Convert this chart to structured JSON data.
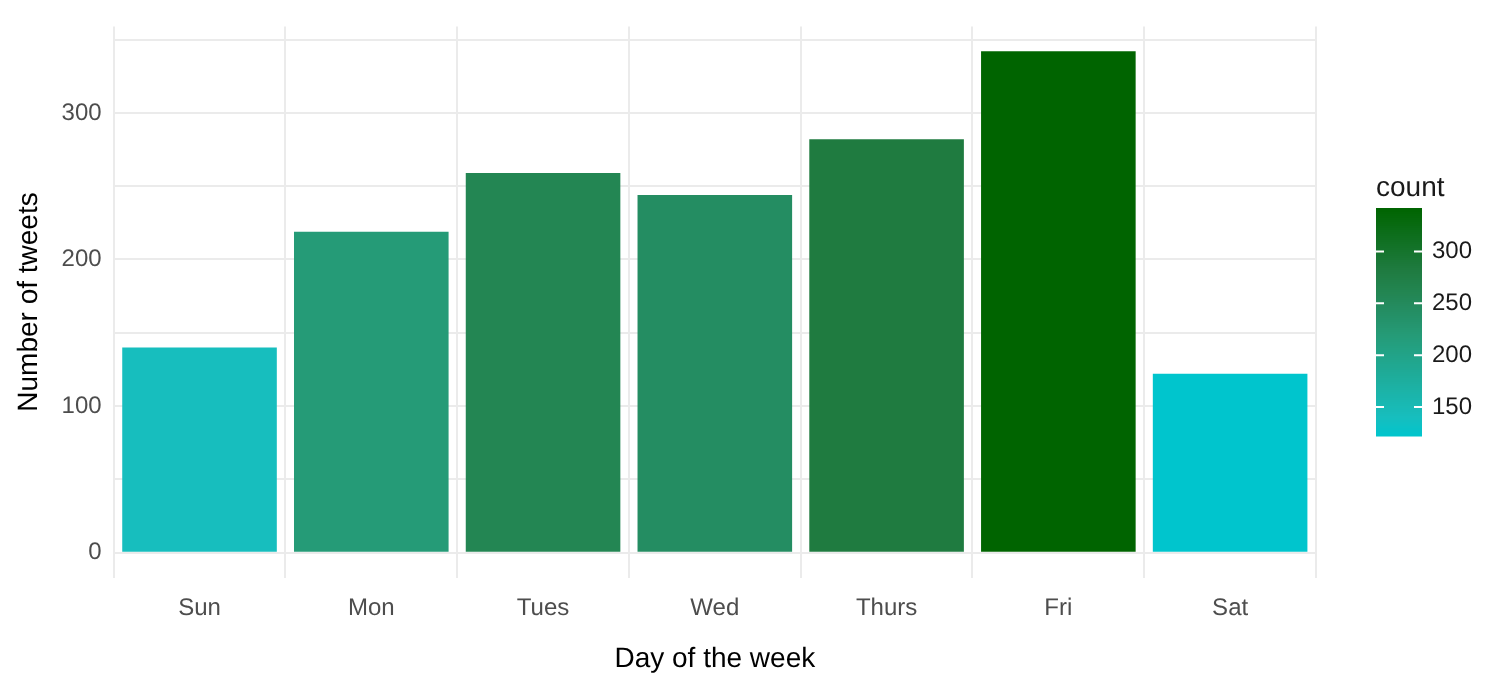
{
  "chart_data": {
    "type": "bar",
    "xlabel": "Day of the week",
    "ylabel": "Number of tweets",
    "clabel": "count",
    "categories": [
      "Sun",
      "Mon",
      "Tues",
      "Wed",
      "Thurs",
      "Fri",
      "Sat"
    ],
    "values": [
      140,
      219,
      259,
      244,
      282,
      342,
      122
    ],
    "colors": [
      "#17bebe",
      "#259b77",
      "#238653",
      "#248d62",
      "#1f7b40",
      "#006400",
      "#00c5cd"
    ],
    "ylim": [
      -17,
      359
    ],
    "yticks": [
      0,
      {
        "value": 50,
        "label": null
      },
      100,
      {
        "value": 150,
        "label": null
      },
      200,
      {
        "value": 250,
        "label": null
      },
      300,
      {
        "value": 350,
        "label": null
      }
    ],
    "clim": [
      122,
      342
    ],
    "cticks": [
      150,
      200,
      250,
      300
    ],
    "grid": true,
    "legend": false
  }
}
